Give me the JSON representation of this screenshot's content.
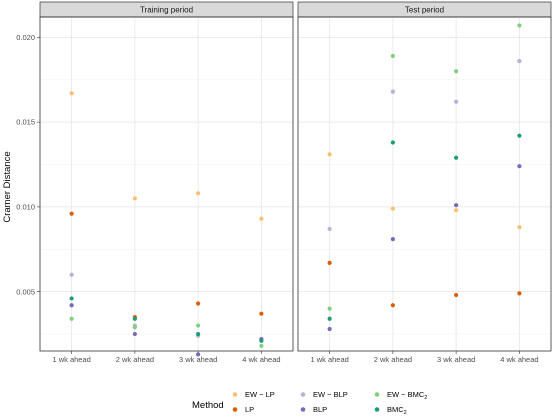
{
  "chart_data": {
    "type": "scatter",
    "ylabel": "Cramer Distance",
    "xlabel": "",
    "ylim": [
      0.0015,
      0.0212
    ],
    "yticks": [
      0.005,
      0.01,
      0.015,
      0.02
    ],
    "ytick_labels": [
      "0.005",
      "0.010",
      "0.015",
      "0.020"
    ],
    "categories": [
      "1 wk ahead",
      "2 wk ahead",
      "3 wk ahead",
      "4 wk ahead"
    ],
    "grid": true,
    "legend_position": "bottom",
    "legend_title": "Method",
    "methods": [
      {
        "key": "EW-LP",
        "label_main": "EW − LP",
        "label_sub": "",
        "color": "#fdbf6f"
      },
      {
        "key": "LP",
        "label_main": "LP",
        "label_sub": "",
        "color": "#d95f02"
      },
      {
        "key": "EW-BLP",
        "label_main": "EW − BLP",
        "label_sub": "",
        "color": "#bcaed6"
      },
      {
        "key": "BLP",
        "label_main": "BLP",
        "label_sub": "",
        "color": "#7b68b8"
      },
      {
        "key": "EW-BMC2",
        "label_main": "EW − BMC",
        "label_sub": "2",
        "color": "#7fcf7f"
      },
      {
        "key": "BMC2",
        "label_main": "BMC",
        "label_sub": "2",
        "color": "#1b9e77"
      }
    ],
    "panels": [
      {
        "title": "Training period",
        "series": [
          {
            "method": "EW-LP",
            "values": [
              0.0167,
              0.0105,
              0.0108,
              0.0093
            ]
          },
          {
            "method": "LP",
            "values": [
              0.0096,
              0.0035,
              0.0043,
              0.0037
            ]
          },
          {
            "method": "EW-BLP",
            "values": [
              0.006,
              0.003,
              0.0024,
              0.0022
            ]
          },
          {
            "method": "BLP",
            "values": [
              0.0042,
              0.0025,
              0.0013,
              0.0022
            ]
          },
          {
            "method": "EW-BMC2",
            "values": [
              0.0034,
              0.0029,
              0.003,
              0.0018
            ]
          },
          {
            "method": "BMC2",
            "values": [
              0.0046,
              0.0034,
              0.0025,
              0.0021
            ]
          }
        ]
      },
      {
        "title": "Test period",
        "series": [
          {
            "method": "EW-LP",
            "values": [
              0.0131,
              0.0099,
              0.0098,
              0.0088
            ]
          },
          {
            "method": "LP",
            "values": [
              0.0067,
              0.0042,
              0.0048,
              0.0049
            ]
          },
          {
            "method": "EW-BLP",
            "values": [
              0.0087,
              0.0168,
              0.0162,
              0.0186
            ]
          },
          {
            "method": "BLP",
            "values": [
              0.0028,
              0.0081,
              0.0101,
              0.0124
            ]
          },
          {
            "method": "EW-BMC2",
            "values": [
              0.004,
              0.0189,
              0.018,
              0.0207
            ]
          },
          {
            "method": "BMC2",
            "values": [
              0.0034,
              0.0138,
              0.0129,
              0.0142
            ]
          }
        ]
      }
    ]
  }
}
